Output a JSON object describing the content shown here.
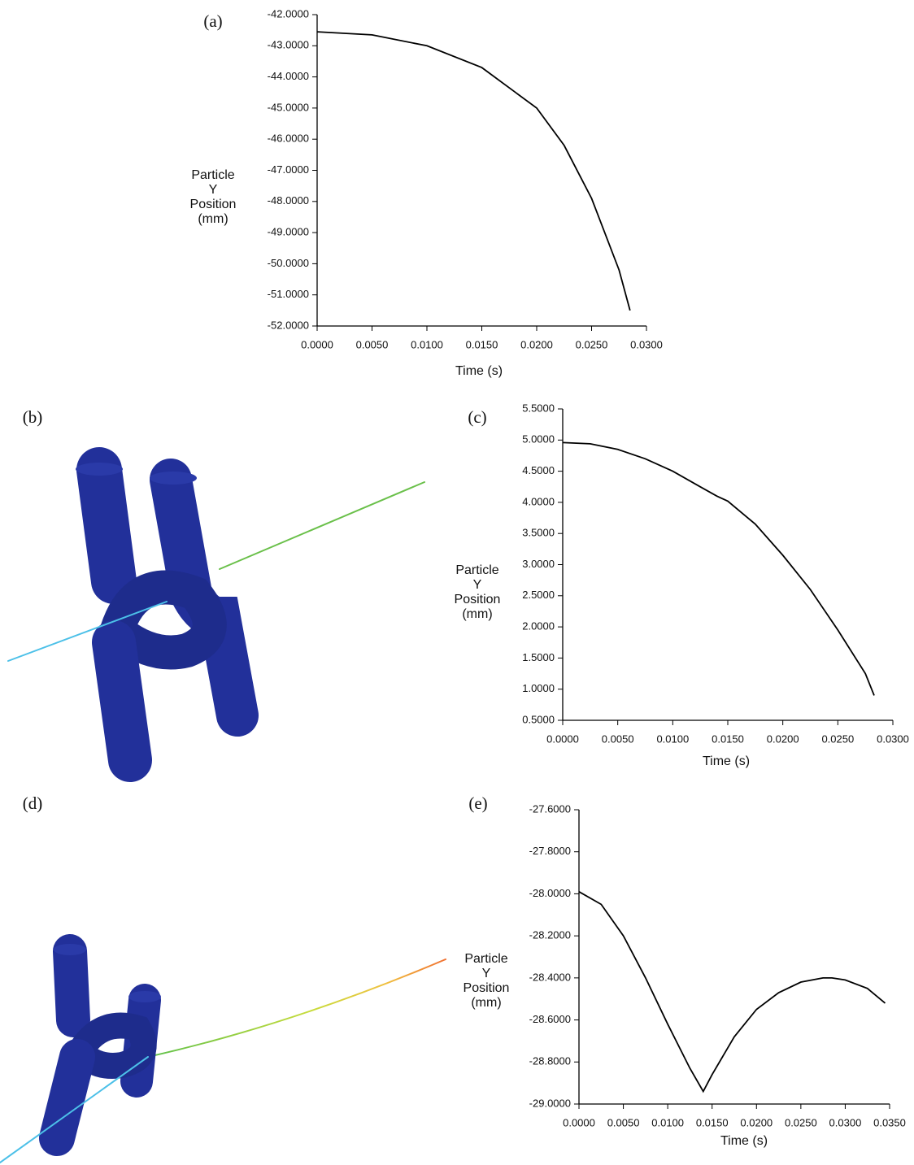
{
  "chart_data": [
    {
      "type": "line",
      "label": "(a)",
      "ylabel": [
        "Particle",
        "Y",
        "Position",
        "(mm)"
      ],
      "xlabel": "Time (s)",
      "color": "#000000",
      "x": [
        0,
        0.005,
        0.01,
        0.015,
        0.02,
        0.0225,
        0.025,
        0.0275,
        0.0285
      ],
      "values": [
        -42.55,
        -42.65,
        -43.0,
        -43.7,
        -45.0,
        -46.2,
        -47.9,
        -50.2,
        -51.5
      ],
      "xlim": [
        0,
        0.03
      ],
      "ylim": [
        -52,
        -42
      ],
      "xticks": [
        {
          "value": 0,
          "label": "0.0000"
        },
        {
          "value": 0.005,
          "label": "0.0050"
        },
        {
          "value": 0.01,
          "label": "0.0100"
        },
        {
          "value": 0.015,
          "label": "0.0150"
        },
        {
          "value": 0.02,
          "label": "0.0200"
        },
        {
          "value": 0.025,
          "label": "0.0250"
        },
        {
          "value": 0.03,
          "label": "0.0300"
        }
      ],
      "yticks": [
        {
          "value": -42,
          "label": "-42.0000"
        },
        {
          "value": -43,
          "label": "-43.0000"
        },
        {
          "value": -44,
          "label": "-44.0000"
        },
        {
          "value": -45,
          "label": "-45.0000"
        },
        {
          "value": -46,
          "label": "-46.0000"
        },
        {
          "value": -47,
          "label": "-47.0000"
        },
        {
          "value": -48,
          "label": "-48.0000"
        },
        {
          "value": -49,
          "label": "-49.0000"
        },
        {
          "value": -50,
          "label": "-50.0000"
        },
        {
          "value": -51,
          "label": "-51.0000"
        },
        {
          "value": -52,
          "label": "-52.0000"
        }
      ]
    },
    {
      "type": "line",
      "label": "(c)",
      "ylabel": [
        "Particle",
        "Y",
        "Position",
        "(mm)"
      ],
      "xlabel": "Time (s)",
      "color": "#000000",
      "x": [
        0,
        0.0025,
        0.005,
        0.0075,
        0.01,
        0.0125,
        0.014,
        0.015,
        0.0175,
        0.02,
        0.0225,
        0.025,
        0.0275,
        0.0283
      ],
      "values": [
        4.96,
        4.94,
        4.85,
        4.7,
        4.5,
        4.25,
        4.1,
        4.02,
        3.65,
        3.15,
        2.6,
        1.95,
        1.25,
        0.9
      ],
      "xlim": [
        0,
        0.03
      ],
      "ylim": [
        0.5,
        5.5
      ],
      "xticks": [
        {
          "value": 0,
          "label": "0.0000"
        },
        {
          "value": 0.005,
          "label": "0.0050"
        },
        {
          "value": 0.01,
          "label": "0.0100"
        },
        {
          "value": 0.015,
          "label": "0.0150"
        },
        {
          "value": 0.02,
          "label": "0.0200"
        },
        {
          "value": 0.025,
          "label": "0.0250"
        },
        {
          "value": 0.03,
          "label": "0.0300"
        }
      ],
      "yticks": [
        {
          "value": 0.5,
          "label": "0.5000"
        },
        {
          "value": 1,
          "label": "1.0000"
        },
        {
          "value": 1.5,
          "label": "1.5000"
        },
        {
          "value": 2,
          "label": "2.0000"
        },
        {
          "value": 2.5,
          "label": "2.5000"
        },
        {
          "value": 3,
          "label": "3.0000"
        },
        {
          "value": 3.5,
          "label": "3.5000"
        },
        {
          "value": 4,
          "label": "4.0000"
        },
        {
          "value": 4.5,
          "label": "4.5000"
        },
        {
          "value": 5,
          "label": "5.0000"
        },
        {
          "value": 5.5,
          "label": "5.5000"
        }
      ]
    },
    {
      "type": "line",
      "label": "(e)",
      "ylabel": [
        "Particle",
        "Y",
        "Position",
        "(mm)"
      ],
      "xlabel": "Time (s)",
      "color": "#000000",
      "x": [
        0,
        0.0025,
        0.005,
        0.0075,
        0.01,
        0.0125,
        0.014,
        0.015,
        0.0175,
        0.02,
        0.0225,
        0.025,
        0.0275,
        0.0285,
        0.03,
        0.0325,
        0.0345
      ],
      "values": [
        -27.99,
        -28.05,
        -28.2,
        -28.4,
        -28.62,
        -28.83,
        -28.94,
        -28.86,
        -28.68,
        -28.55,
        -28.47,
        -28.42,
        -28.4,
        -28.4,
        -28.41,
        -28.45,
        -28.52
      ],
      "xlim": [
        0,
        0.035
      ],
      "ylim": [
        -29,
        -27.6
      ],
      "xticks": [
        {
          "value": 0,
          "label": "0.0000"
        },
        {
          "value": 0.005,
          "label": "0.0050"
        },
        {
          "value": 0.01,
          "label": "0.0100"
        },
        {
          "value": 0.015,
          "label": "0.0150"
        },
        {
          "value": 0.02,
          "label": "0.0200"
        },
        {
          "value": 0.025,
          "label": "0.0250"
        },
        {
          "value": 0.03,
          "label": "0.0300"
        },
        {
          "value": 0.035,
          "label": "0.0350"
        }
      ],
      "yticks": [
        {
          "value": -27.6,
          "label": "-27.6000"
        },
        {
          "value": -27.8,
          "label": "-27.8000"
        },
        {
          "value": -28,
          "label": "-28.0000"
        },
        {
          "value": -28.2,
          "label": "-28.2000"
        },
        {
          "value": -28.4,
          "label": "-28.4000"
        },
        {
          "value": -28.6,
          "label": "-28.6000"
        },
        {
          "value": -28.8,
          "label": "-28.8000"
        },
        {
          "value": -29,
          "label": "-29.0000"
        }
      ]
    }
  ],
  "images": [
    {
      "label": "(b)"
    },
    {
      "label": "(d)"
    }
  ]
}
